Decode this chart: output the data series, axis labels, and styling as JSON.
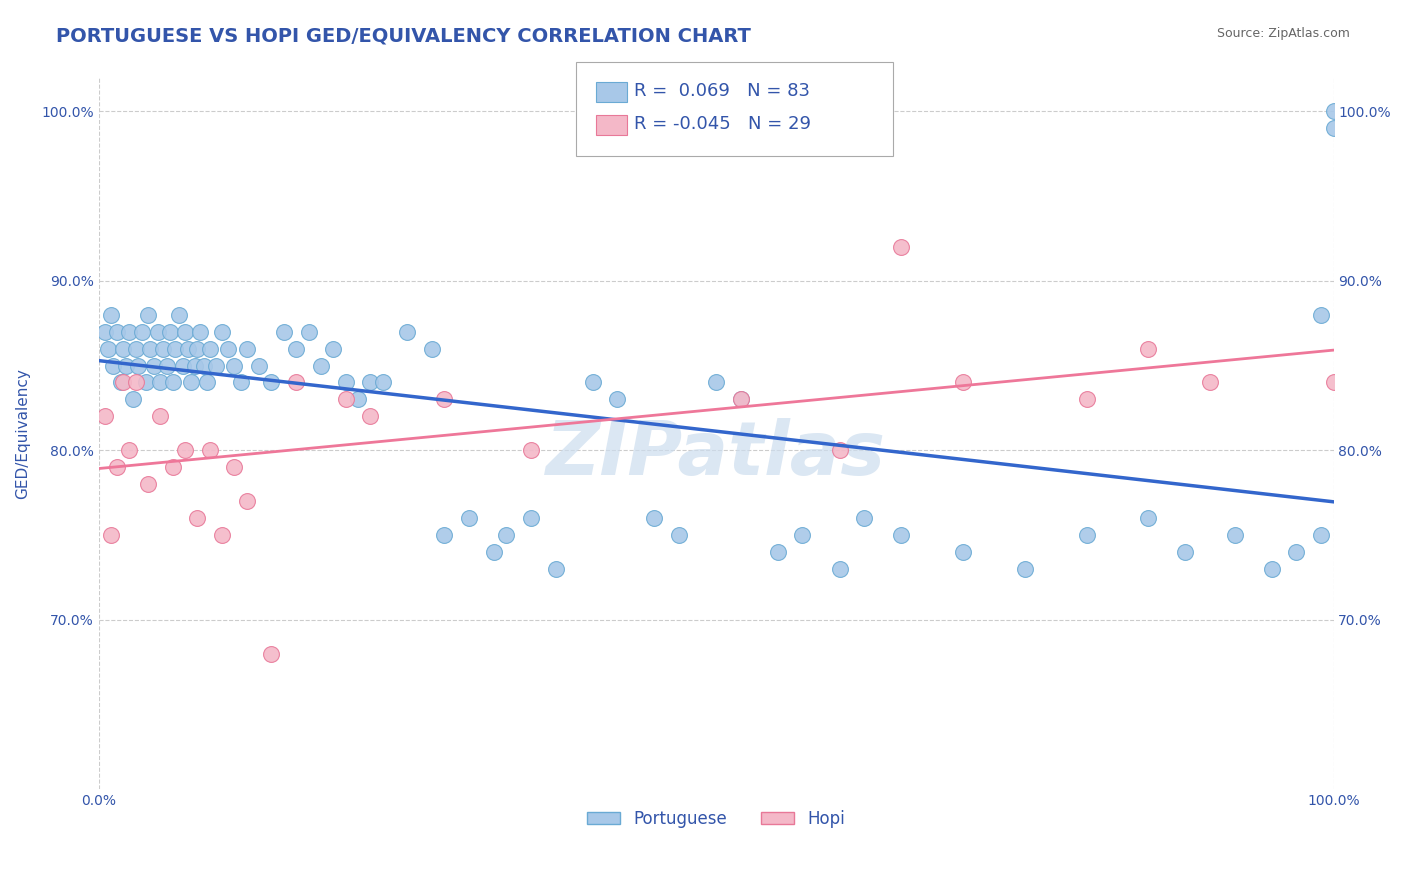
{
  "title": "PORTUGUESE VS HOPI GED/EQUIVALENCY CORRELATION CHART",
  "source": "Source: ZipAtlas.com",
  "ylabel": "GED/Equivalency",
  "xlim": [
    0.0,
    1.0
  ],
  "ylim": [
    0.6,
    1.02
  ],
  "yticks": [
    0.7,
    0.8,
    0.9,
    1.0
  ],
  "ytick_labels": [
    "70.0%",
    "80.0%",
    "90.0%",
    "100.0%"
  ],
  "blue_R": 0.069,
  "blue_N": 83,
  "pink_R": -0.045,
  "pink_N": 29,
  "blue_color": "#a8c8e8",
  "blue_edge": "#6aaad4",
  "pink_color": "#f4b8c8",
  "pink_edge": "#e87898",
  "line_blue": "#3366cc",
  "line_pink": "#ee7799",
  "legend_blue_face": "#a8c8e8",
  "legend_pink_face": "#f4b8c8",
  "title_color": "#3355aa",
  "source_color": "#666666",
  "axis_label_color": "#3355aa",
  "tick_color": "#3355aa",
  "grid_color": "#cccccc",
  "watermark_color": "#ccddee",
  "portuguese_x": [
    0.005,
    0.008,
    0.01,
    0.012,
    0.015,
    0.018,
    0.02,
    0.022,
    0.025,
    0.028,
    0.03,
    0.032,
    0.035,
    0.038,
    0.04,
    0.042,
    0.045,
    0.048,
    0.05,
    0.052,
    0.055,
    0.058,
    0.06,
    0.062,
    0.065,
    0.068,
    0.07,
    0.072,
    0.075,
    0.078,
    0.08,
    0.082,
    0.085,
    0.088,
    0.09,
    0.095,
    0.1,
    0.105,
    0.11,
    0.115,
    0.12,
    0.13,
    0.14,
    0.15,
    0.16,
    0.17,
    0.18,
    0.19,
    0.2,
    0.21,
    0.22,
    0.23,
    0.25,
    0.27,
    0.28,
    0.3,
    0.32,
    0.33,
    0.35,
    0.37,
    0.4,
    0.42,
    0.45,
    0.47,
    0.5,
    0.52,
    0.55,
    0.57,
    0.6,
    0.62,
    0.65,
    0.7,
    0.75,
    0.8,
    0.85,
    0.88,
    0.92,
    0.95,
    0.97,
    0.99,
    0.99,
    1.0,
    1.0
  ],
  "portuguese_y": [
    0.87,
    0.86,
    0.88,
    0.85,
    0.87,
    0.84,
    0.86,
    0.85,
    0.87,
    0.83,
    0.86,
    0.85,
    0.87,
    0.84,
    0.88,
    0.86,
    0.85,
    0.87,
    0.84,
    0.86,
    0.85,
    0.87,
    0.84,
    0.86,
    0.88,
    0.85,
    0.87,
    0.86,
    0.84,
    0.85,
    0.86,
    0.87,
    0.85,
    0.84,
    0.86,
    0.85,
    0.87,
    0.86,
    0.85,
    0.84,
    0.86,
    0.85,
    0.84,
    0.87,
    0.86,
    0.87,
    0.85,
    0.86,
    0.84,
    0.83,
    0.84,
    0.84,
    0.87,
    0.86,
    0.75,
    0.76,
    0.74,
    0.75,
    0.76,
    0.73,
    0.84,
    0.83,
    0.76,
    0.75,
    0.84,
    0.83,
    0.74,
    0.75,
    0.73,
    0.76,
    0.75,
    0.74,
    0.73,
    0.75,
    0.76,
    0.74,
    0.75,
    0.73,
    0.74,
    0.75,
    0.88,
    1.0,
    0.99
  ],
  "hopi_x": [
    0.005,
    0.01,
    0.015,
    0.02,
    0.025,
    0.03,
    0.04,
    0.05,
    0.06,
    0.07,
    0.08,
    0.09,
    0.1,
    0.11,
    0.12,
    0.14,
    0.16,
    0.2,
    0.22,
    0.28,
    0.35,
    0.52,
    0.6,
    0.65,
    0.7,
    0.8,
    0.85,
    0.9,
    1.0
  ],
  "hopi_y": [
    0.82,
    0.75,
    0.79,
    0.84,
    0.8,
    0.84,
    0.78,
    0.82,
    0.79,
    0.8,
    0.76,
    0.8,
    0.75,
    0.79,
    0.77,
    0.68,
    0.84,
    0.83,
    0.82,
    0.83,
    0.8,
    0.83,
    0.8,
    0.92,
    0.84,
    0.83,
    0.86,
    0.84,
    0.84
  ]
}
